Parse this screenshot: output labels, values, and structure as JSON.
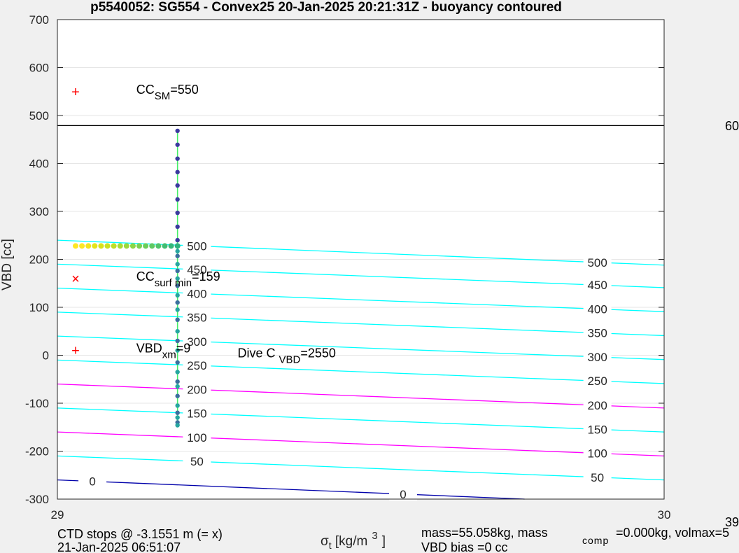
{
  "chart_data": {
    "type": "line",
    "title": "p5540052: SG554 - Convex25 20-Jan-2025 20:21:31Z - buoyancy contoured",
    "xlabel": {
      "base": "σ",
      "sub": "t",
      "rest": " [kg/m",
      "sup": "3",
      "end": "]"
    },
    "ylabel": "VBD [cc]",
    "xlim": [
      29,
      30
    ],
    "ylim": [
      -300,
      700
    ],
    "xticks": [
      29,
      30
    ],
    "yticks": [
      -300,
      -200,
      -100,
      0,
      100,
      200,
      300,
      400,
      500,
      600,
      700
    ],
    "grid": true,
    "hline": {
      "y": 479,
      "color": "#000000"
    },
    "contour_lines": [
      {
        "level": "500",
        "y0": 240,
        "y1": 188,
        "color": "#00ffff",
        "labels": [
          [
            0.23,
            "500"
          ],
          [
            0.89,
            "500"
          ]
        ]
      },
      {
        "level": "450",
        "y0": 190,
        "y1": 141,
        "color": "#00ffff",
        "labels": [
          [
            0.23,
            "450"
          ],
          [
            0.89,
            "450"
          ]
        ]
      },
      {
        "level": "400",
        "y0": 140,
        "y1": 91,
        "color": "#00ffff",
        "labels": [
          [
            0.23,
            "400"
          ],
          [
            0.89,
            "400"
          ]
        ]
      },
      {
        "level": "350",
        "y0": 90,
        "y1": 41,
        "color": "#00ffff",
        "labels": [
          [
            0.23,
            "350"
          ],
          [
            0.89,
            "350"
          ]
        ]
      },
      {
        "level": "300",
        "y0": 40,
        "y1": -9,
        "color": "#00ffff",
        "labels": [
          [
            0.23,
            "300"
          ],
          [
            0.89,
            "300"
          ]
        ]
      },
      {
        "level": "250",
        "y0": -10,
        "y1": -59,
        "color": "#00ffff",
        "labels": [
          [
            0.23,
            "250"
          ],
          [
            0.89,
            "250"
          ]
        ]
      },
      {
        "level": "200",
        "y0": -60,
        "y1": -110,
        "color": "#ff00ff",
        "labels": [
          [
            0.23,
            "200"
          ],
          [
            0.89,
            "200"
          ]
        ]
      },
      {
        "level": "150",
        "y0": -110,
        "y1": -160,
        "color": "#00ffff",
        "labels": [
          [
            0.23,
            "150"
          ],
          [
            0.89,
            "150"
          ]
        ]
      },
      {
        "level": "100",
        "y0": -160,
        "y1": -210,
        "color": "#ff00ff",
        "labels": [
          [
            0.23,
            "100"
          ],
          [
            0.89,
            "100"
          ]
        ]
      },
      {
        "level": "50",
        "y0": -210,
        "y1": -260,
        "color": "#00ffff",
        "labels": [
          [
            0.23,
            "50"
          ],
          [
            0.89,
            "50"
          ]
        ]
      },
      {
        "level": "0",
        "y0": -260,
        "y1": -300,
        "x_end": 29.77,
        "color": "#0000aa",
        "labels": [
          [
            0.075,
            "0"
          ],
          [
            0.74,
            "0"
          ]
        ]
      }
    ],
    "dive_points": {
      "x": 29.198,
      "y": [
        468,
        439,
        410,
        382,
        354,
        325,
        297,
        268,
        240,
        217,
        207,
        190,
        176,
        160,
        145,
        125,
        110,
        95,
        74,
        50,
        30,
        10,
        -15,
        -35,
        -55,
        -65,
        -85,
        -105,
        -120,
        -130,
        -140,
        -146
      ]
    },
    "surface_points": {
      "x_start": 29.03,
      "x_end": 29.198,
      "y": 228,
      "colors": [
        "#fde725",
        "#fde725",
        "#f2e51d",
        "#e5e419",
        "#d8e219",
        "#cae11f",
        "#bddf26",
        "#aadc32",
        "#9bd93c",
        "#8bd646",
        "#7ad151",
        "#6ccd5a",
        "#5ec962",
        "#4fc46a",
        "#40bd72",
        "#35b779",
        "#2db27d"
      ]
    },
    "markers": [
      {
        "x": 29.03,
        "y": 550,
        "symbol": "+",
        "color": "#ff0000"
      },
      {
        "x": 29.03,
        "y": 160,
        "symbol": "×",
        "color": "#ff0000"
      },
      {
        "x": 29.03,
        "y": 10,
        "symbol": "+",
        "color": "#ff0000"
      }
    ],
    "annotations": [
      {
        "x": 29.13,
        "y": 550,
        "base": "CC",
        "sub": "SM",
        "rest": "=550"
      },
      {
        "x": 29.13,
        "y": 160,
        "base": "CC",
        "sub": "surf min",
        "rest": "=159"
      },
      {
        "x": 29.13,
        "y": 10,
        "base": "VBD",
        "sub": "xm",
        "rest": "=9"
      },
      {
        "x": 29.297,
        "y": 0,
        "base": "Dive C ",
        "sub": "VBD",
        "rest": "=2550"
      }
    ],
    "right_edge_labels": [
      "60",
      "39"
    ]
  },
  "footer": {
    "line1": "CTD stops @ -3.1551 m (= x)",
    "line2": "21-Jan-2025 06:51:07",
    "mass_line": "mass=55.058kg, mass",
    "mass_sub": "comp",
    "mass_rest": "=0.000kg, volmax=5",
    "vbd_bias": "VBD bias =0 cc"
  }
}
